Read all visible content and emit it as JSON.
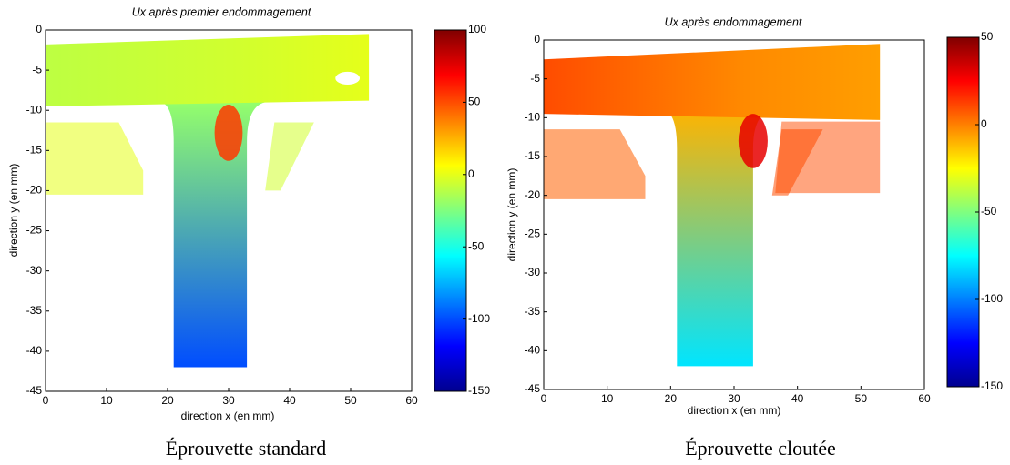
{
  "chart_data": [
    {
      "type": "heatmap",
      "title": "Ux après premier endommagement",
      "xlabel": "direction x (en mm)",
      "ylabel": "direction y (en mm)",
      "caption": "Éprouvette standard",
      "xlim": [
        0,
        60
      ],
      "xticks": [
        0,
        10,
        20,
        30,
        40,
        50,
        60
      ],
      "ylim": [
        -45,
        0
      ],
      "yticks": [
        0,
        -5,
        -10,
        -15,
        -20,
        -25,
        -30,
        -35,
        -40,
        -45
      ],
      "colormap": "jet",
      "clim": [
        -150,
        100
      ],
      "cticks": [
        -150,
        -100,
        -50,
        0,
        50,
        100
      ]
    },
    {
      "type": "heatmap",
      "title": "Ux après endommagement",
      "xlabel": "direction x (en mm)",
      "ylabel": "direction y (en mm)",
      "caption": "Éprouvette cloutée",
      "xlim": [
        0,
        60
      ],
      "xticks": [
        0,
        10,
        20,
        30,
        40,
        50,
        60
      ],
      "ylim": [
        -45,
        0
      ],
      "yticks": [
        0,
        -5,
        -10,
        -15,
        -20,
        -25,
        -30,
        -35,
        -40,
        -45
      ],
      "colormap": "jet",
      "clim": [
        -150,
        50
      ],
      "cticks": [
        -150,
        -100,
        -50,
        0,
        50
      ]
    }
  ]
}
